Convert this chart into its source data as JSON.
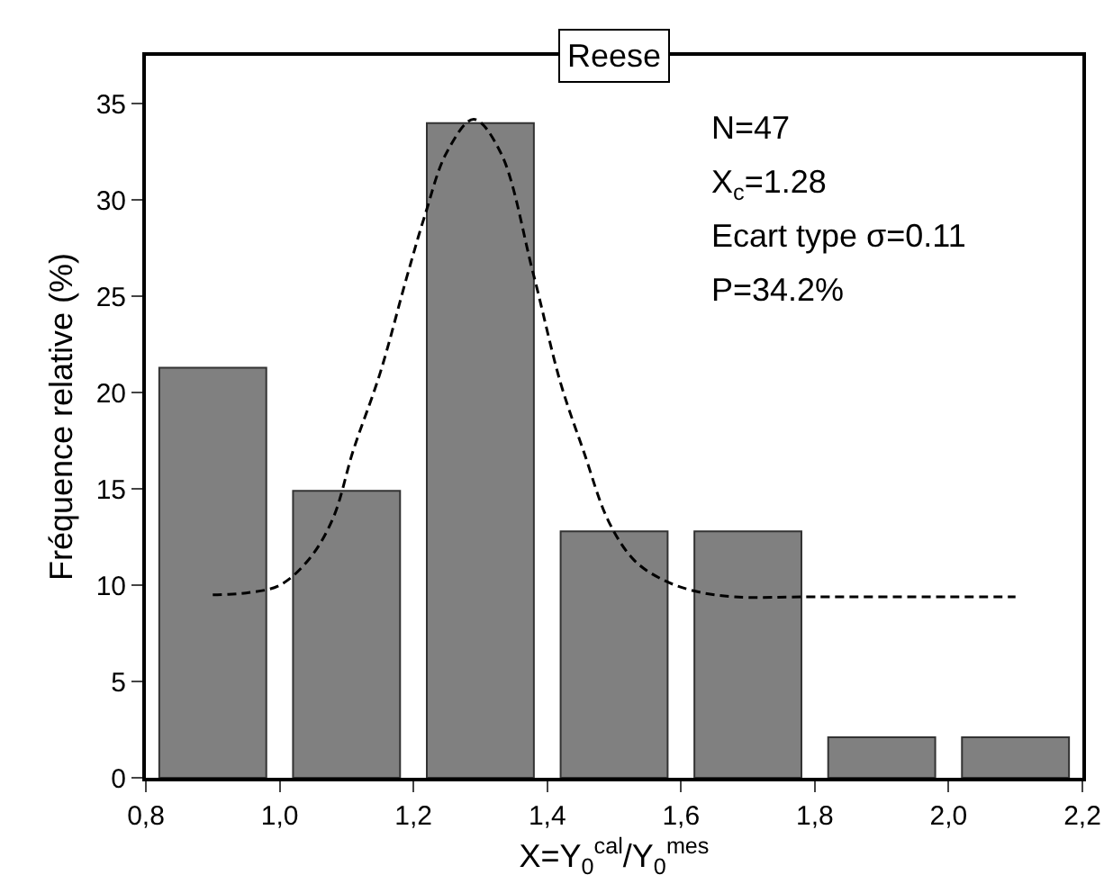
{
  "chart_data": {
    "type": "histogram",
    "title": "Reese",
    "xlabel": "X=Y$_{0}$$^{cal}$/Y$_{0}$$^{mes}$",
    "ylabel": "Fréquence relative (%)",
    "bins": [
      0.8,
      1.0,
      1.2,
      1.4,
      1.6,
      1.8,
      2.0,
      2.2
    ],
    "values": [
      21.3,
      14.9,
      34.0,
      12.8,
      12.8,
      2.1,
      2.1
    ],
    "color": "#808080",
    "series": [
      {
        "type": "line",
        "line_style": "dashed",
        "color": "#000000",
        "x": [
          0.9,
          0.95,
          1.0,
          1.045,
          1.08,
          1.11,
          1.15,
          1.19,
          1.217,
          1.25,
          1.29,
          1.33,
          1.379,
          1.42,
          1.454,
          1.492,
          1.53,
          1.572,
          1.62,
          1.68,
          1.8,
          2.0,
          2.1
        ],
        "values": [
          9.5,
          9.6,
          10.0,
          11.4,
          13.5,
          17.0,
          21.0,
          26.0,
          29.2,
          32.5,
          34.2,
          32.5,
          26.2,
          20.5,
          17.0,
          13.3,
          11.3,
          10.3,
          9.7,
          9.4,
          9.4,
          9.4,
          9.4
        ]
      }
    ],
    "xlim": [
      0.8,
      2.2
    ],
    "xticks": [
      {
        "value": 0.8,
        "label": "0,8"
      },
      {
        "value": 1.0,
        "label": "1,0"
      },
      {
        "value": 1.2,
        "label": "1,2"
      },
      {
        "value": 1.4,
        "label": "1,4"
      },
      {
        "value": 1.6,
        "label": "1,6"
      },
      {
        "value": 1.8,
        "label": "1,8"
      },
      {
        "value": 2.0,
        "label": "2,0"
      },
      {
        "value": 2.2,
        "label": "2,2"
      }
    ],
    "ylim": [
      0,
      37.5
    ],
    "yticks": [
      0,
      5,
      10,
      15,
      20,
      25,
      30,
      35
    ],
    "grid": false,
    "annotations": [
      "N=47",
      "X$_{c}$=1.28",
      "Ecart type σ=0.11",
      "P=34.2%"
    ]
  }
}
